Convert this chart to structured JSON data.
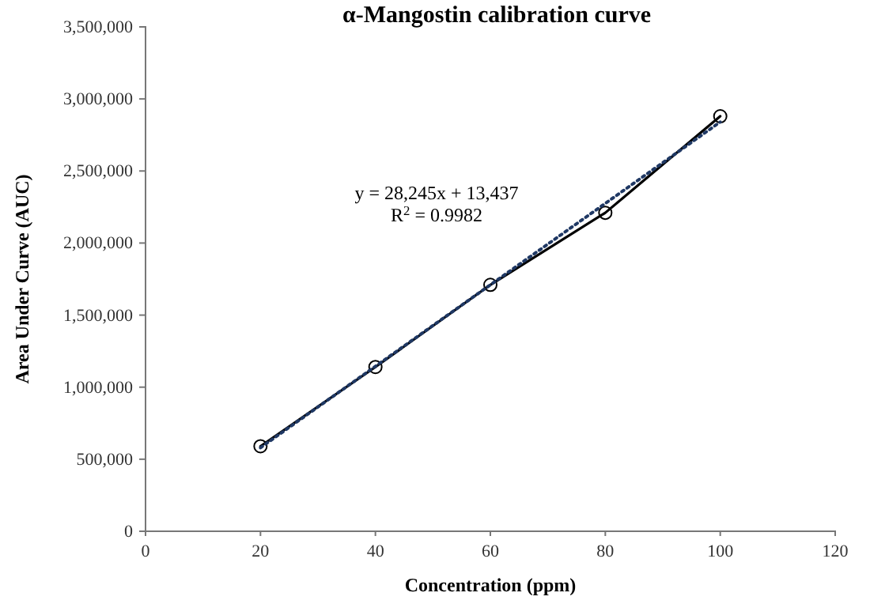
{
  "chart_data": {
    "type": "line",
    "title": "α-Mangostin calibration curve",
    "xlabel": "Concentration (ppm)",
    "ylabel": "Area Under Curve (AUC)",
    "x": [
      20,
      40,
      60,
      80,
      100
    ],
    "series": [
      {
        "type": "line",
        "color": "#000000",
        "marker": "circle",
        "line_style": "solid",
        "values": [
          590000,
          1140000,
          1710000,
          2210000,
          2880000
        ]
      },
      {
        "type": "line",
        "color": "#1f3864",
        "marker": "none",
        "line_style": "dotted",
        "x": [
          20,
          100
        ],
        "values": [
          580000,
          2840000
        ]
      }
    ],
    "xlim": [
      0,
      120
    ],
    "xticks": [
      0,
      20,
      40,
      60,
      80,
      100,
      120
    ],
    "ylim": [
      0,
      3500000
    ],
    "yticks": [
      {
        "value": 0,
        "label": "0"
      },
      {
        "value": 500000,
        "label": "500,000"
      },
      {
        "value": 1000000,
        "label": "1,000,000"
      },
      {
        "value": 1500000,
        "label": "1,500,000"
      },
      {
        "value": 2000000,
        "label": "2,000,000"
      },
      {
        "value": 2500000,
        "label": "2,500,000"
      },
      {
        "value": 3000000,
        "label": "3,000,000"
      },
      {
        "value": 3500000,
        "label": "3,500,000"
      }
    ],
    "annotations": [
      "y = 28,245x + 13,437",
      "R$^{2}$ = 0.9982"
    ],
    "grid": false
  }
}
